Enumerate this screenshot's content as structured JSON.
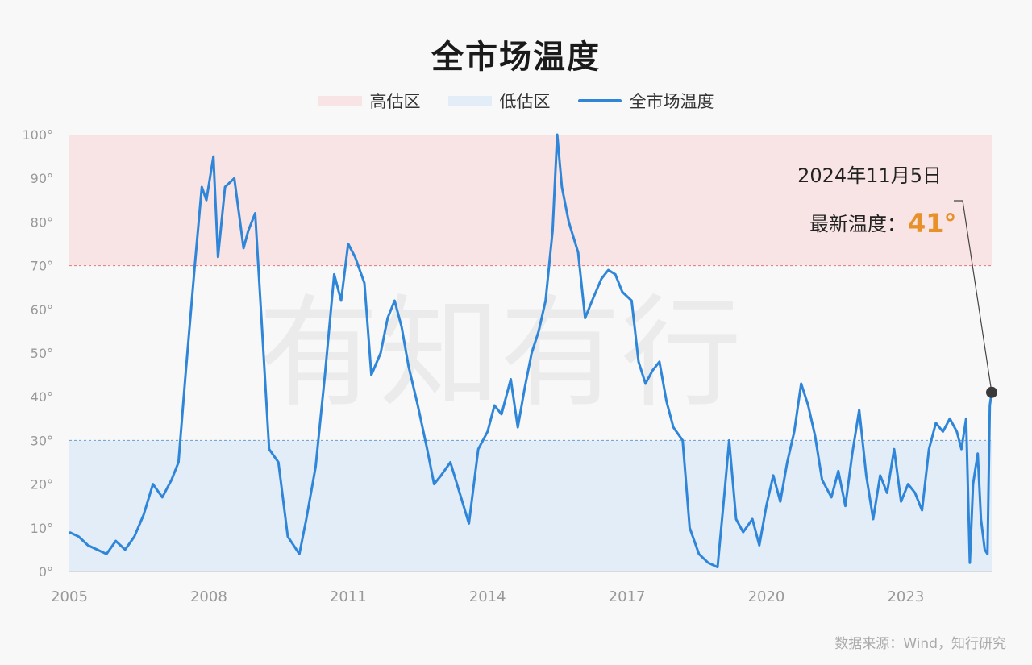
{
  "title": "全市场温度",
  "legend": {
    "items": [
      {
        "label": "高估区",
        "color": "#f8e4e4"
      },
      {
        "label": "低估区",
        "color": "#e3edf8"
      },
      {
        "label": "全市场温度",
        "color": "#2f86d9"
      }
    ]
  },
  "annotation": {
    "date": "2024年11月5日",
    "label": "最新温度：",
    "value": "41°",
    "value_color": "#e8902a"
  },
  "source": "数据来源：Wind，知行研究",
  "watermark": "有知有行",
  "chart_data": {
    "type": "line",
    "title": "全市场温度",
    "xlabel": "",
    "ylabel": "",
    "xlim": [
      2005.0,
      2024.85
    ],
    "ylim": [
      0,
      100
    ],
    "x_ticks": [
      "2005",
      "2008",
      "2011",
      "2014",
      "2017",
      "2020",
      "2023"
    ],
    "y_ticks": [
      "0°",
      "10°",
      "20°",
      "30°",
      "40°",
      "50°",
      "60°",
      "70°",
      "80°",
      "90°",
      "100°"
    ],
    "zones": [
      {
        "name": "高估区",
        "from": 70,
        "to": 100,
        "color": "#f8e4e4"
      },
      {
        "name": "低估区",
        "from": 0,
        "to": 30,
        "color": "#e3edf8"
      }
    ],
    "thresholds": [
      70,
      30
    ],
    "grid": false,
    "legend_position": "top",
    "series": [
      {
        "name": "全市场温度",
        "color": "#2f86d9",
        "points": [
          [
            2005.0,
            9
          ],
          [
            2005.2,
            8
          ],
          [
            2005.4,
            6
          ],
          [
            2005.6,
            5
          ],
          [
            2005.8,
            4
          ],
          [
            2006.0,
            7
          ],
          [
            2006.2,
            5
          ],
          [
            2006.4,
            8
          ],
          [
            2006.6,
            13
          ],
          [
            2006.8,
            20
          ],
          [
            2007.0,
            17
          ],
          [
            2007.2,
            21
          ],
          [
            2007.35,
            25
          ],
          [
            2007.5,
            45
          ],
          [
            2007.7,
            70
          ],
          [
            2007.85,
            88
          ],
          [
            2007.95,
            85
          ],
          [
            2008.1,
            95
          ],
          [
            2008.2,
            72
          ],
          [
            2008.35,
            88
          ],
          [
            2008.55,
            90
          ],
          [
            2008.75,
            74
          ],
          [
            2008.85,
            78
          ],
          [
            2009.0,
            82
          ],
          [
            2009.15,
            55
          ],
          [
            2009.3,
            28
          ],
          [
            2009.5,
            25
          ],
          [
            2009.7,
            8
          ],
          [
            2009.95,
            4
          ],
          [
            2010.1,
            12
          ],
          [
            2010.3,
            24
          ],
          [
            2010.5,
            45
          ],
          [
            2010.7,
            68
          ],
          [
            2010.85,
            62
          ],
          [
            2011.0,
            75
          ],
          [
            2011.15,
            72
          ],
          [
            2011.35,
            66
          ],
          [
            2011.5,
            45
          ],
          [
            2011.7,
            50
          ],
          [
            2011.85,
            58
          ],
          [
            2012.0,
            62
          ],
          [
            2012.15,
            56
          ],
          [
            2012.3,
            47
          ],
          [
            2012.5,
            38
          ],
          [
            2012.7,
            28
          ],
          [
            2012.85,
            20
          ],
          [
            2013.0,
            22
          ],
          [
            2013.2,
            25
          ],
          [
            2013.4,
            18
          ],
          [
            2013.6,
            11
          ],
          [
            2013.8,
            28
          ],
          [
            2014.0,
            32
          ],
          [
            2014.15,
            38
          ],
          [
            2014.3,
            36
          ],
          [
            2014.5,
            44
          ],
          [
            2014.65,
            33
          ],
          [
            2014.8,
            42
          ],
          [
            2014.95,
            50
          ],
          [
            2015.1,
            55
          ],
          [
            2015.25,
            62
          ],
          [
            2015.4,
            78
          ],
          [
            2015.5,
            100
          ],
          [
            2015.6,
            88
          ],
          [
            2015.75,
            80
          ],
          [
            2015.95,
            73
          ],
          [
            2016.1,
            58
          ],
          [
            2016.25,
            62
          ],
          [
            2016.45,
            67
          ],
          [
            2016.6,
            69
          ],
          [
            2016.75,
            68
          ],
          [
            2016.9,
            64
          ],
          [
            2017.1,
            62
          ],
          [
            2017.25,
            48
          ],
          [
            2017.4,
            43
          ],
          [
            2017.55,
            46
          ],
          [
            2017.7,
            48
          ],
          [
            2017.85,
            39
          ],
          [
            2018.0,
            33
          ],
          [
            2018.2,
            30
          ],
          [
            2018.35,
            10
          ],
          [
            2018.55,
            4
          ],
          [
            2018.75,
            2
          ],
          [
            2018.95,
            1
          ],
          [
            2019.1,
            18
          ],
          [
            2019.2,
            30
          ],
          [
            2019.35,
            12
          ],
          [
            2019.5,
            9
          ],
          [
            2019.7,
            12
          ],
          [
            2019.85,
            6
          ],
          [
            2020.0,
            15
          ],
          [
            2020.15,
            22
          ],
          [
            2020.3,
            16
          ],
          [
            2020.45,
            25
          ],
          [
            2020.6,
            32
          ],
          [
            2020.75,
            43
          ],
          [
            2020.9,
            38
          ],
          [
            2021.05,
            31
          ],
          [
            2021.2,
            21
          ],
          [
            2021.4,
            17
          ],
          [
            2021.55,
            23
          ],
          [
            2021.7,
            15
          ],
          [
            2021.85,
            27
          ],
          [
            2022.0,
            37
          ],
          [
            2022.15,
            22
          ],
          [
            2022.3,
            12
          ],
          [
            2022.45,
            22
          ],
          [
            2022.6,
            18
          ],
          [
            2022.75,
            28
          ],
          [
            2022.9,
            16
          ],
          [
            2023.05,
            20
          ],
          [
            2023.2,
            18
          ],
          [
            2023.35,
            14
          ],
          [
            2023.5,
            28
          ],
          [
            2023.65,
            34
          ],
          [
            2023.8,
            32
          ],
          [
            2023.95,
            35
          ],
          [
            2024.1,
            32
          ],
          [
            2024.2,
            28
          ],
          [
            2024.3,
            35
          ],
          [
            2024.38,
            2
          ],
          [
            2024.45,
            20
          ],
          [
            2024.55,
            27
          ],
          [
            2024.62,
            12
          ],
          [
            2024.7,
            5
          ],
          [
            2024.76,
            4
          ],
          [
            2024.81,
            38
          ],
          [
            2024.85,
            41
          ]
        ]
      }
    ],
    "latest": {
      "x": 2024.85,
      "y": 41,
      "date": "2024年11月5日"
    }
  }
}
